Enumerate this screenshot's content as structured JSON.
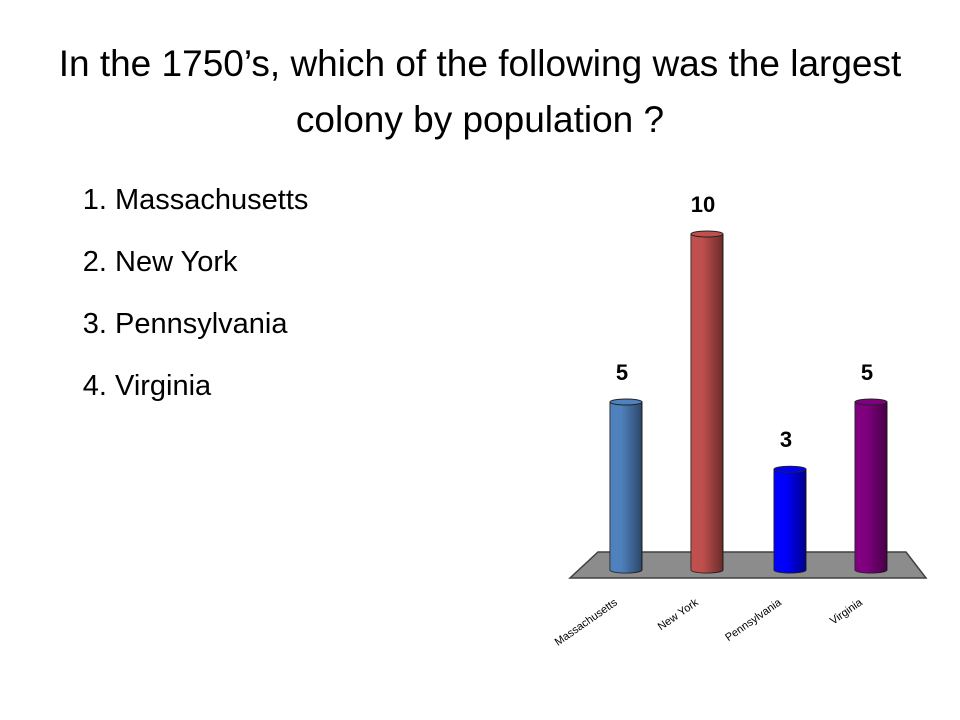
{
  "title": "In the 1750’s, which of the following was the largest colony by population ?",
  "list": [
    "Massachusetts",
    "New York",
    "Pennsylvania",
    "Virginia"
  ],
  "chart_data": {
    "type": "bar",
    "categories": [
      "Massachusetts",
      "New York",
      "Pennsylvania",
      "Virginia"
    ],
    "values": [
      5,
      10,
      3,
      5
    ],
    "colors": [
      "#4f81bd",
      "#c0504d",
      "#0000ff",
      "#800080"
    ]
  }
}
